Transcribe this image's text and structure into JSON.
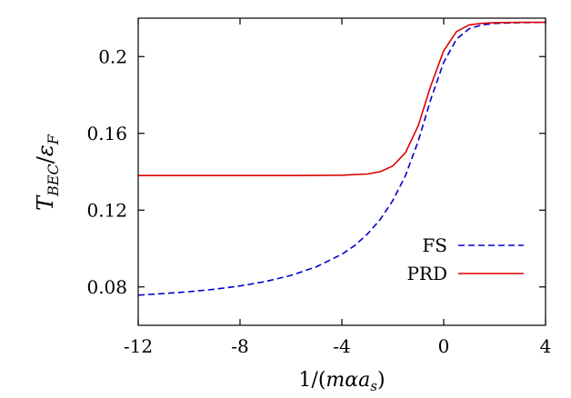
{
  "chart_data": {
    "type": "line",
    "xlabel": "1/(mαa_s)",
    "ylabel": "T_BEC/ε_F",
    "xlim": [
      -12,
      4
    ],
    "ylim": [
      0.06,
      0.22
    ],
    "x_ticks": [
      "-12",
      "-8",
      "-4",
      "0",
      "4"
    ],
    "y_ticks": [
      "0.08",
      "0.12",
      "0.16",
      "0.2"
    ],
    "legend_position": "lower-right",
    "grid": false,
    "series": [
      {
        "name": "FS",
        "style": "dashed",
        "color": "#0000cc",
        "points": [
          [
            -12,
            0.0757
          ],
          [
            -11,
            0.0765
          ],
          [
            -10,
            0.0775
          ],
          [
            -9,
            0.0788
          ],
          [
            -8,
            0.0805
          ],
          [
            -7,
            0.0828
          ],
          [
            -6,
            0.086
          ],
          [
            -5,
            0.0905
          ],
          [
            -4,
            0.097
          ],
          [
            -3.5,
            0.1015
          ],
          [
            -3,
            0.1075
          ],
          [
            -2.5,
            0.115
          ],
          [
            -2,
            0.125
          ],
          [
            -1.5,
            0.138
          ],
          [
            -1,
            0.156
          ],
          [
            -0.5,
            0.178
          ],
          [
            0,
            0.197
          ],
          [
            0.5,
            0.209
          ],
          [
            1,
            0.2145
          ],
          [
            1.5,
            0.2165
          ],
          [
            2,
            0.2173
          ],
          [
            3,
            0.2177
          ],
          [
            4,
            0.2178
          ]
        ]
      },
      {
        "name": "PRD",
        "style": "solid",
        "color": "#dd0000",
        "points": [
          [
            -12,
            0.138
          ],
          [
            -10,
            0.138
          ],
          [
            -8,
            0.138
          ],
          [
            -6,
            0.138
          ],
          [
            -4,
            0.1382
          ],
          [
            -3,
            0.1388
          ],
          [
            -2.5,
            0.14
          ],
          [
            -2,
            0.143
          ],
          [
            -1.5,
            0.15
          ],
          [
            -1,
            0.164
          ],
          [
            -0.5,
            0.185
          ],
          [
            0,
            0.203
          ],
          [
            0.5,
            0.213
          ],
          [
            1,
            0.2165
          ],
          [
            1.5,
            0.2173
          ],
          [
            2,
            0.2177
          ],
          [
            3,
            0.2178
          ],
          [
            4,
            0.2178
          ]
        ]
      }
    ]
  },
  "legend": {
    "fs_label": "FS",
    "prd_label": "PRD"
  }
}
